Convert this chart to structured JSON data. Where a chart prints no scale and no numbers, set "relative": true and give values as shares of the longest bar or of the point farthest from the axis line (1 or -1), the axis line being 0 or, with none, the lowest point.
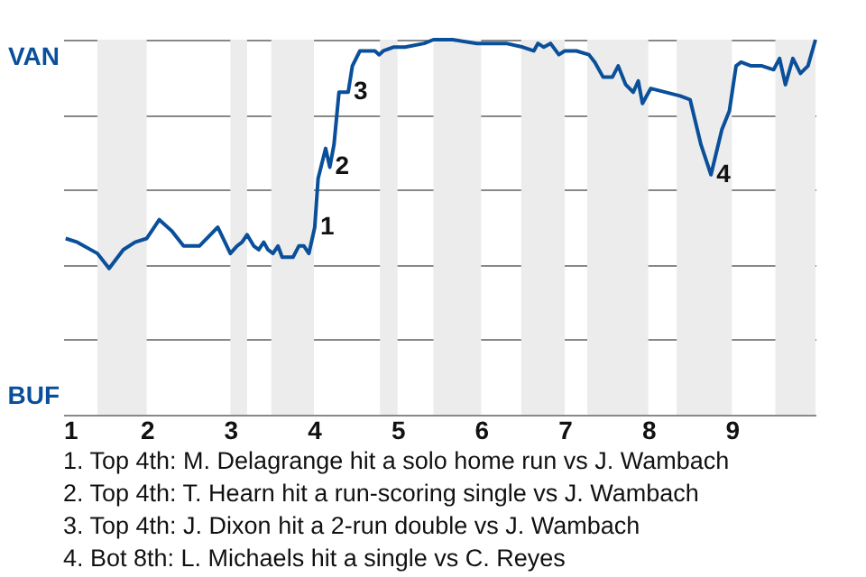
{
  "chart_data": {
    "type": "line",
    "relative": true,
    "x": [
      1.03,
      1.17,
      1.41,
      1.55,
      1.72,
      1.86,
      2.0,
      2.15,
      2.3,
      2.44,
      2.63,
      2.85,
      3.0,
      3.08,
      3.14,
      3.2,
      3.28,
      3.34,
      3.4,
      3.45,
      3.51,
      3.57,
      3.62,
      3.75,
      3.82,
      3.88,
      3.94,
      3.98,
      4.01,
      4.05,
      4.14,
      4.19,
      4.24,
      4.3,
      4.41,
      4.46,
      4.55,
      4.73,
      4.78,
      4.83,
      4.95,
      5.09,
      5.32,
      5.43,
      5.66,
      5.95,
      6.3,
      6.5,
      6.63,
      6.68,
      6.75,
      6.83,
      6.93,
      7.0,
      7.14,
      7.29,
      7.36,
      7.46,
      7.57,
      7.64,
      7.73,
      7.82,
      7.88,
      7.93,
      8.03,
      8.38,
      8.5,
      8.63,
      8.75,
      8.88,
      8.97,
      9.05,
      9.11,
      9.23,
      9.36,
      9.5,
      9.57,
      9.64,
      9.73,
      9.82,
      9.91,
      10.0
    ],
    "series": [
      {
        "color": "#0a4f9a",
        "values": [
          0.47,
          0.46,
          0.43,
          0.39,
          0.44,
          0.46,
          0.47,
          0.52,
          0.49,
          0.45,
          0.45,
          0.5,
          0.43,
          0.45,
          0.46,
          0.48,
          0.45,
          0.44,
          0.46,
          0.44,
          0.43,
          0.45,
          0.42,
          0.42,
          0.45,
          0.45,
          0.43,
          0.47,
          0.5,
          0.63,
          0.71,
          0.66,
          0.72,
          0.86,
          0.86,
          0.93,
          0.97,
          0.97,
          0.96,
          0.97,
          0.98,
          0.98,
          0.99,
          1.0,
          1.0,
          0.99,
          0.99,
          0.98,
          0.97,
          0.99,
          0.98,
          0.99,
          0.96,
          0.97,
          0.97,
          0.96,
          0.94,
          0.9,
          0.9,
          0.93,
          0.88,
          0.86,
          0.89,
          0.83,
          0.87,
          0.85,
          0.84,
          0.72,
          0.64,
          0.76,
          0.81,
          0.93,
          0.94,
          0.93,
          0.93,
          0.92,
          0.95,
          0.88,
          0.95,
          0.91,
          0.93,
          1.0
        ]
      }
    ],
    "xlim": [
      1,
      10
    ],
    "xticks": [
      1,
      2,
      3,
      4,
      5,
      6,
      7,
      8,
      9
    ],
    "grid": "y",
    "marker": "none",
    "line_style": "solid",
    "bands": [
      {
        "axis": "x",
        "from": 1.41,
        "to": 2.0,
        "color": "#ececec"
      },
      {
        "axis": "x",
        "from": 3.0,
        "to": 3.2,
        "color": "#ececec"
      },
      {
        "axis": "x",
        "from": 3.49,
        "to": 4.0,
        "color": "#ececec"
      },
      {
        "axis": "x",
        "from": 4.79,
        "to": 5.0,
        "color": "#ececec"
      },
      {
        "axis": "x",
        "from": 5.43,
        "to": 6.0,
        "color": "#ececec"
      },
      {
        "axis": "x",
        "from": 6.48,
        "to": 7.0,
        "color": "#ececec"
      },
      {
        "axis": "x",
        "from": 7.27,
        "to": 8.0,
        "color": "#ececec"
      },
      {
        "axis": "x",
        "from": 8.34,
        "to": 9.0,
        "color": "#ececec"
      },
      {
        "axis": "x",
        "from": 9.52,
        "to": 10.0,
        "color": "#ececec"
      }
    ],
    "annotations": [
      "VAN",
      "BUF",
      {
        "text": "1",
        "x": 4.01,
        "y": 0.5
      },
      {
        "text": "2",
        "x": 4.19,
        "y": 0.66
      },
      {
        "text": "3",
        "x": 4.41,
        "y": 0.86
      },
      {
        "text": "4",
        "x": 8.75,
        "y": 0.64
      },
      "1. Top 4th: M. Delagrange hit a solo home run vs J. Wambach",
      "2. Top 4th: T. Hearn hit a run-scoring single vs J. Wambach",
      "3. Top 4th: J. Dixon hit a 2-run double vs J. Wambach",
      "4. Bot 8th: L. Michaels hit a single vs C. Reyes"
    ]
  }
}
